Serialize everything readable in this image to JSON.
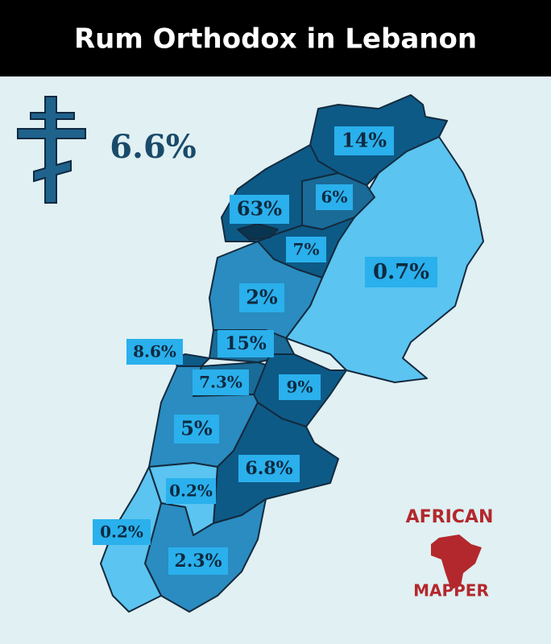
{
  "title": "Rum Orthodox in Lebanon",
  "national_share": "6.6%",
  "regions": [
    {
      "label": "14%"
    },
    {
      "label": "6%"
    },
    {
      "label": "63%"
    },
    {
      "label": "7%"
    },
    {
      "label": "0.7%"
    },
    {
      "label": "2%"
    },
    {
      "label": "15%"
    },
    {
      "label": "8.6%"
    },
    {
      "label": "7.3%"
    },
    {
      "label": "9%"
    },
    {
      "label": "5%"
    },
    {
      "label": "6.8%"
    },
    {
      "label": "0.2%"
    },
    {
      "label": "0.2%"
    },
    {
      "label": "2.3%"
    }
  ],
  "brand": {
    "line1": "AFRICAN",
    "line2": "MAPPER"
  }
}
